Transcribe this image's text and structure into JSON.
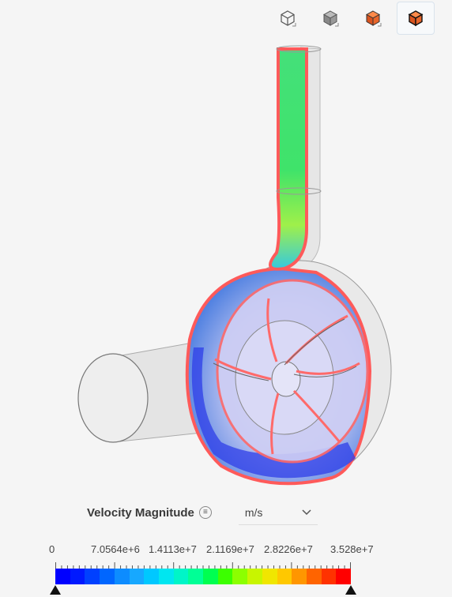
{
  "toolbar": {
    "buttons": [
      {
        "icon": "wireframe-cube-icon"
      },
      {
        "icon": "solid-cube-icon"
      },
      {
        "icon": "surface-cube-icon"
      },
      {
        "icon": "surface-edges-cube-icon",
        "active": true
      }
    ]
  },
  "legend": {
    "title": "Velocity Magnitude",
    "unit": "m/s",
    "tick_labels": [
      "0",
      "7.0564e+6",
      "1.4113e+7",
      "2.1169e+7",
      "2.8226e+7",
      "3.528e+7"
    ],
    "min": 0,
    "max": 35280000,
    "colors": [
      "#0000ff",
      "#0019ff",
      "#0040ff",
      "#0066ff",
      "#0d8cff",
      "#17a8ff",
      "#00c8ff",
      "#00e6f0",
      "#00f5c8",
      "#00ff96",
      "#00ff50",
      "#3cff00",
      "#8cff00",
      "#c8f500",
      "#f0e600",
      "#ffc800",
      "#ff9600",
      "#ff6400",
      "#ff3200",
      "#ff0000"
    ]
  }
}
